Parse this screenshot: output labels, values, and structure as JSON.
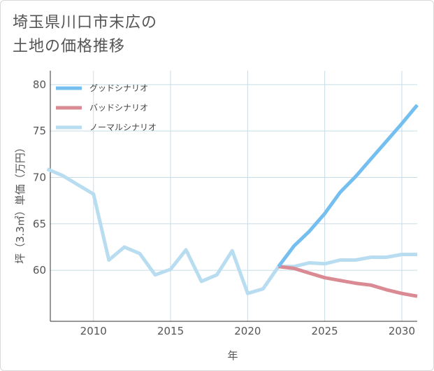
{
  "title": {
    "line1": "埼玉県川口市末広の",
    "line2": "土地の価格推移"
  },
  "colors": {
    "good": "#74bff0",
    "bad": "#da8a93",
    "normal": "#b8ddf0",
    "grid": "#c8dce8"
  },
  "chart_data": {
    "type": "line",
    "title": "埼玉県川口市末広の土地の価格推移",
    "xlabel": "年",
    "ylabel": "坪（3.3㎡）単価（万円）",
    "xlim": [
      2007.2,
      2031
    ],
    "ylim": [
      54.5,
      81.5
    ],
    "xticks": [
      2010,
      2015,
      2020,
      2025,
      2030
    ],
    "yticks": [
      60,
      65,
      70,
      75,
      80
    ],
    "legend_position": "top-left",
    "series": [
      {
        "key": "good",
        "name": "グッドシナリオ",
        "x": [
          2022,
          2023,
          2024,
          2025,
          2026,
          2027,
          2028,
          2029,
          2030,
          2031
        ],
        "y": [
          60.4,
          62.6,
          64.2,
          66.1,
          68.4,
          70.1,
          72.0,
          73.9,
          75.8,
          77.8
        ]
      },
      {
        "key": "bad",
        "name": "バッドシナリオ",
        "x": [
          2022,
          2023,
          2024,
          2025,
          2026,
          2027,
          2028,
          2029,
          2030,
          2031
        ],
        "y": [
          60.4,
          60.2,
          59.7,
          59.2,
          58.9,
          58.6,
          58.4,
          57.9,
          57.5,
          57.2
        ]
      },
      {
        "key": "normal",
        "name": "ノーマルシナリオ",
        "x": [
          2007,
          2008,
          2009,
          2010,
          2011,
          2012,
          2013,
          2014,
          2015,
          2016,
          2017,
          2018,
          2019,
          2020,
          2021,
          2022,
          2023,
          2024,
          2025,
          2026,
          2027,
          2028,
          2029,
          2030,
          2031
        ],
        "y": [
          70.9,
          70.2,
          69.2,
          68.2,
          61.1,
          62.5,
          61.8,
          59.5,
          60.1,
          62.2,
          58.8,
          59.5,
          62.1,
          57.5,
          58.0,
          60.4,
          60.4,
          60.8,
          60.7,
          61.1,
          61.1,
          61.4,
          61.4,
          61.7,
          61.7
        ]
      }
    ]
  }
}
